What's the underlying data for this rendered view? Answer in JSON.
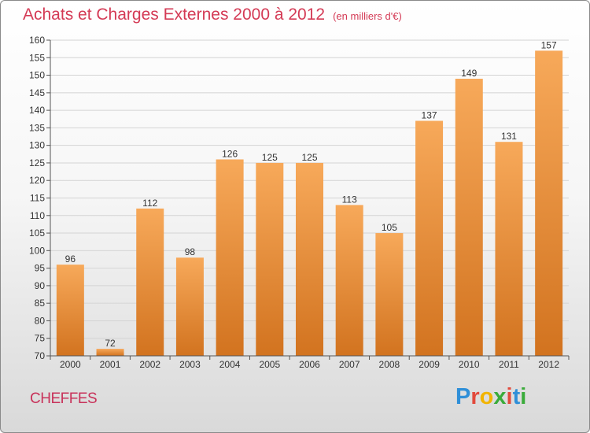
{
  "title": "Achats et Charges Externes 2000 à 2012",
  "subtitle": "(en milliers d'€)",
  "commune": "CHEFFES",
  "logo": {
    "letters": [
      {
        "char": "P",
        "color": "#2f8fd8"
      },
      {
        "char": "r",
        "color": "#e24a3c"
      },
      {
        "char": "o",
        "color": "#f2b400"
      },
      {
        "char": "x",
        "color": "#3aab3a"
      },
      {
        "char": "i",
        "color": "#e24a3c"
      },
      {
        "char": "t",
        "color": "#2f8fd8"
      },
      {
        "char": "i",
        "color": "#3aab3a"
      }
    ]
  },
  "colors": {
    "bar_top": "#f7a95a",
    "bar_bottom": "#d2731f",
    "title": "#d43a55"
  },
  "chart_data": {
    "type": "bar",
    "title": "Achats et Charges Externes 2000 à 2012",
    "subtitle": "(en milliers d'€)",
    "categories": [
      "2000",
      "2001",
      "2002",
      "2003",
      "2004",
      "2005",
      "2006",
      "2007",
      "2008",
      "2009",
      "2010",
      "2011",
      "2012"
    ],
    "values": [
      96,
      72,
      112,
      98,
      126,
      125,
      125,
      113,
      105,
      137,
      149,
      131,
      157
    ],
    "ylim": [
      70,
      160
    ],
    "yticks": [
      70,
      75,
      80,
      85,
      90,
      95,
      100,
      105,
      110,
      115,
      120,
      125,
      130,
      135,
      140,
      145,
      150,
      155,
      160
    ],
    "grid": true,
    "xlabel": "",
    "ylabel": ""
  }
}
